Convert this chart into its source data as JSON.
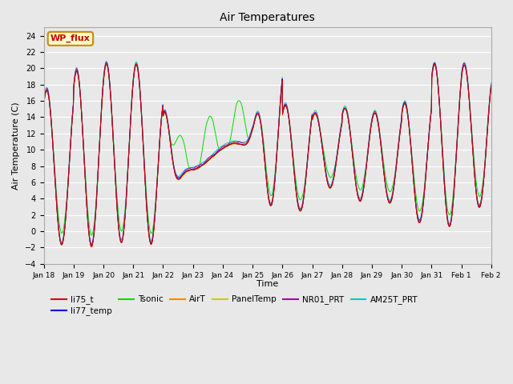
{
  "title": "Air Temperatures",
  "xlabel": "Time",
  "ylabel": "Air Temperature (C)",
  "ylim": [
    -4,
    25
  ],
  "yticks": [
    -4,
    -2,
    0,
    2,
    4,
    6,
    8,
    10,
    12,
    14,
    16,
    18,
    20,
    22,
    24
  ],
  "series": {
    "li75_t": {
      "color": "#DD0000"
    },
    "li77_temp": {
      "color": "#0000EE"
    },
    "Tsonic": {
      "color": "#00DD00"
    },
    "AirT": {
      "color": "#FF8800"
    },
    "PanelTemp": {
      "color": "#CCCC00"
    },
    "NR01_PRT": {
      "color": "#AA00AA"
    },
    "AM25T_PRT": {
      "color": "#00CCCC"
    }
  },
  "legend_label": "WP_flux",
  "legend_bg": "#FFFFCC",
  "legend_border": "#CC8800",
  "bg_color": "#E8E8E8",
  "plot_bg": "#E8E8E8",
  "grid_color": "#FFFFFF",
  "n_points": 1440,
  "x_tick_labels": [
    "Jan 18",
    "Jan 19",
    "Jan 20",
    "Jan 21",
    "Jan 22",
    "Jan 23",
    "Jan 24",
    "Jan 25",
    "Jan 26",
    "Jan 27",
    "Jan 28",
    "Jan 29",
    "Jan 30",
    "Jan 31",
    "Feb 1",
    "Feb 2"
  ]
}
